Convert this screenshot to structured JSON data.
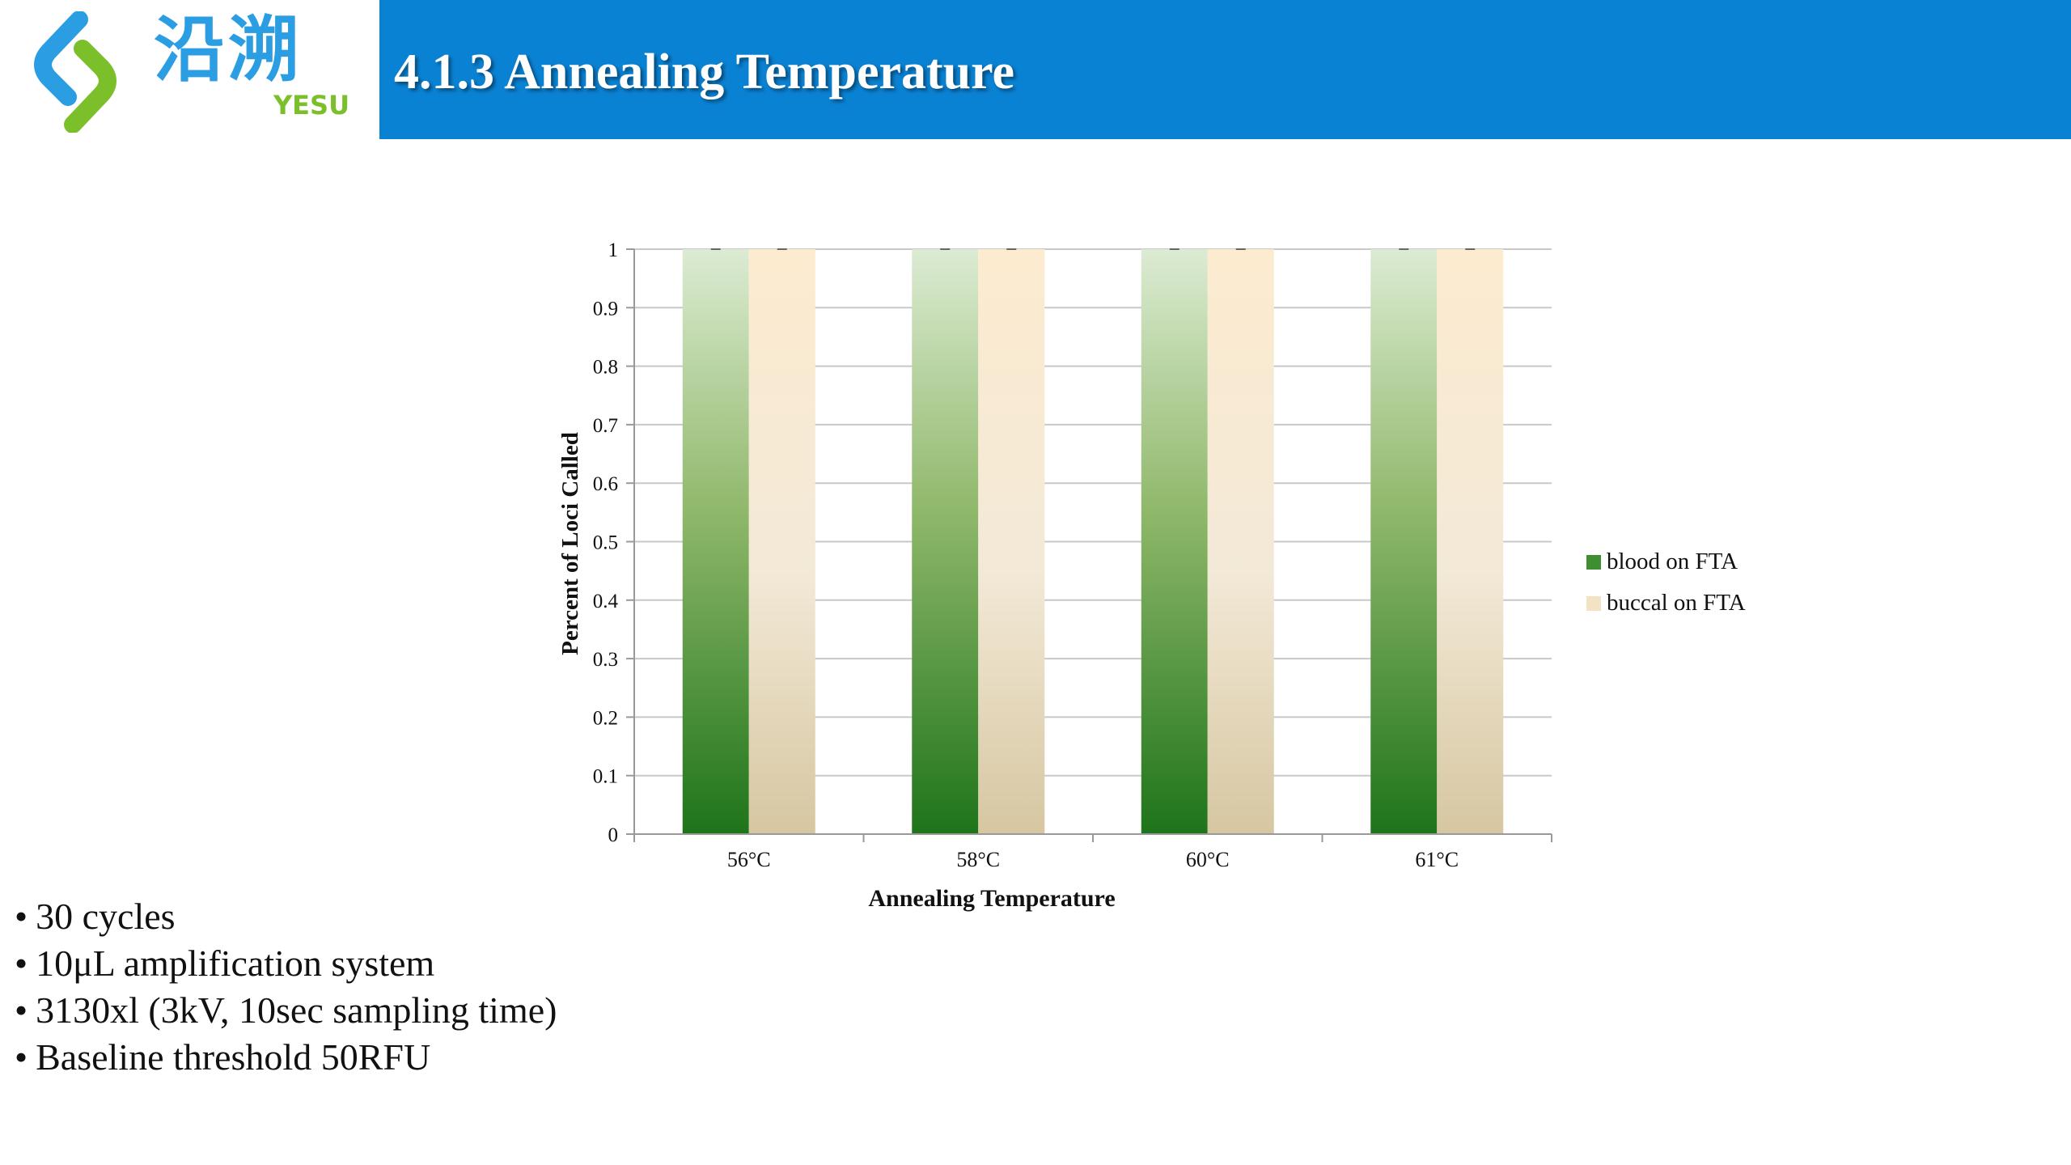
{
  "logo": {
    "name_cn": "沿溯",
    "name_en": "YESU",
    "icon": "yesu-logo-icon"
  },
  "header": {
    "title": "4.1.3 Annealing Temperature"
  },
  "colors": {
    "header_bg": "#0a82d3",
    "blood": "#1f7a1f",
    "buccal": "#d8c9a4"
  },
  "chart_data": {
    "type": "bar",
    "categories": [
      "56°C",
      "58°C",
      "60°C",
      "61°C"
    ],
    "series": [
      {
        "name": "blood on FTA",
        "values": [
          1,
          1,
          1,
          1
        ]
      },
      {
        "name": "buccal on FTA",
        "values": [
          1,
          1,
          1,
          1
        ]
      }
    ],
    "xlabel": "Annealing Temperature",
    "ylabel": "Percent of Loci Called",
    "ylim": [
      0,
      1
    ],
    "yticks": [
      "0",
      "0.1",
      "0.2",
      "0.3",
      "0.4",
      "0.5",
      "0.6",
      "0.7",
      "0.8",
      "0.9",
      "1"
    ],
    "grid": true,
    "legend": "right"
  },
  "notes": [
    "30 cycles",
    "10μL amplification system",
    "3130xl (3kV, 10sec sampling time)",
    "Baseline threshold 50RFU"
  ]
}
